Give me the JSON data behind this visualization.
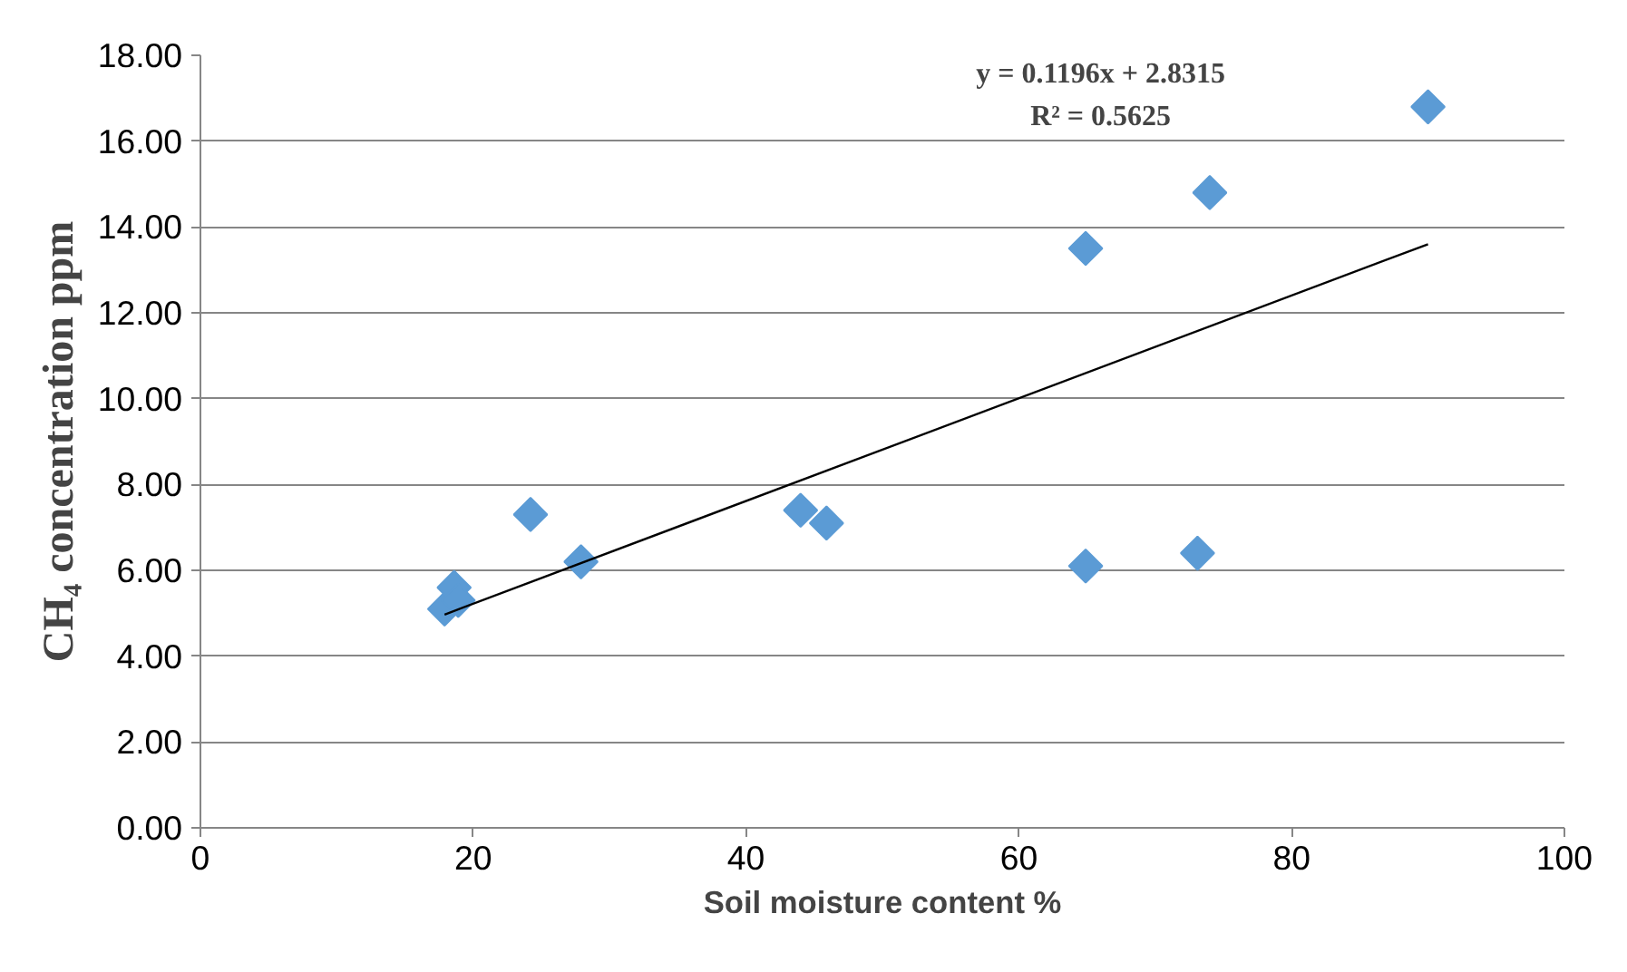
{
  "chart_data": {
    "type": "scatter",
    "xlabel": "Soil moisture content %",
    "ylabel": "CH₄ concentration ppm",
    "annotations": [
      "y = 0.1196x + 2.8315",
      "R² = 0.5625"
    ],
    "series": [
      {
        "color": "#5b9bd5",
        "marker": "diamond",
        "x": [
          17.9,
          18.6,
          18.9,
          24.2,
          27.9,
          44.0,
          45.9,
          64.9,
          74.0,
          90.0,
          64.9,
          73.1
        ],
        "values": [
          5.1,
          5.6,
          5.3,
          7.3,
          6.2,
          7.4,
          7.1,
          13.5,
          14.8,
          16.8,
          6.1,
          6.4
        ]
      },
      {
        "type": "line",
        "color": "#000000",
        "marker": "none",
        "x": [
          17.9,
          90.0
        ],
        "values": [
          4.97,
          13.6
        ]
      }
    ],
    "xlim": [
      0,
      100
    ],
    "xticks": [
      0,
      20,
      40,
      60,
      80,
      100
    ],
    "ylim": [
      0,
      18
    ],
    "yticks": [
      {
        "value": 0,
        "label": "0.00"
      },
      {
        "value": 2,
        "label": "2.00"
      },
      {
        "value": 4,
        "label": "4.00"
      },
      {
        "value": 6,
        "label": "6.00"
      },
      {
        "value": 8,
        "label": "8.00"
      },
      {
        "value": 10,
        "label": "10.00"
      },
      {
        "value": 12,
        "label": "12.00"
      },
      {
        "value": 14,
        "label": "14.00"
      },
      {
        "value": 16,
        "label": "16.00"
      },
      {
        "value": 18,
        "label": "18.00"
      }
    ],
    "grid": "y"
  }
}
